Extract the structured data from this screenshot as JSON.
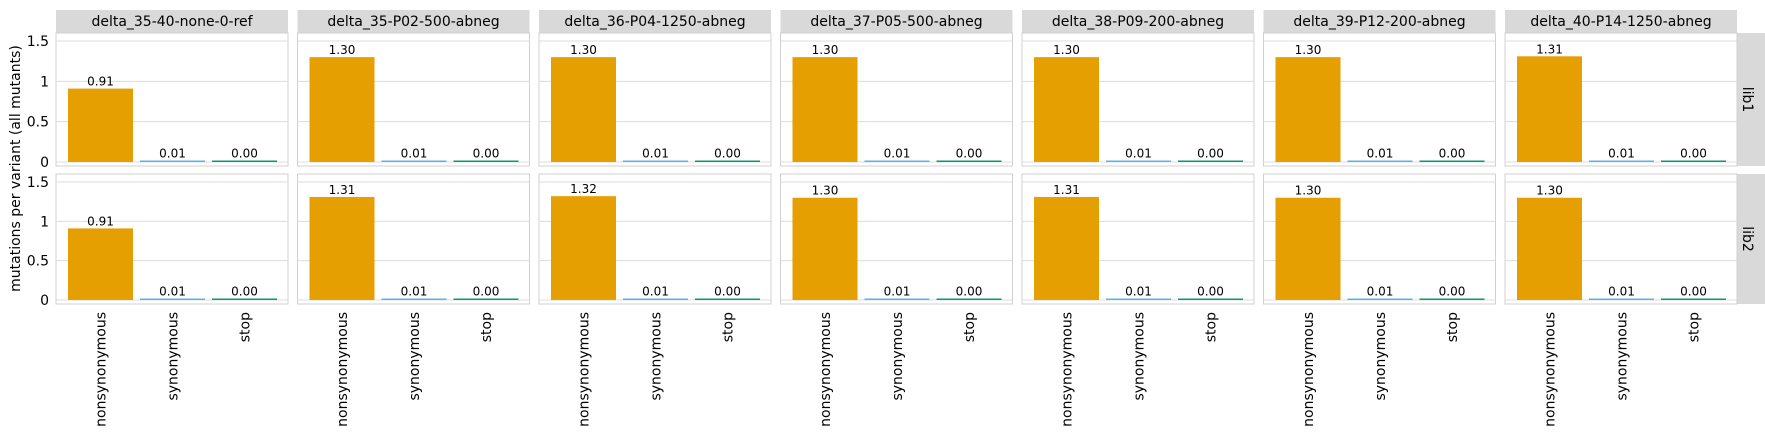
{
  "chart_data": {
    "type": "bar",
    "ylabel": "mutations per variant (all mutants)",
    "xlabel": "",
    "categories": [
      "nonsynonymous",
      "synonymous",
      "stop"
    ],
    "ylim": [
      0,
      1.5
    ],
    "yticks": [
      0,
      0.5,
      1,
      1.5
    ],
    "ytick_labels": [
      "0",
      "0.5",
      "1",
      "1.5"
    ],
    "grid": true,
    "legend": "none",
    "colors": {
      "nonsynonymous": "#E69F00",
      "synonymous": "#56B4E9",
      "stop": "#009E73",
      "strip_background": "#D9D9D9",
      "gridline": "#DCDCDC",
      "panel_border": "#D0D0D0"
    },
    "columns": [
      "delta_35-40-none-0-ref",
      "delta_35-P02-500-abneg",
      "delta_36-P04-1250-abneg",
      "delta_37-P05-500-abneg",
      "delta_38-P09-200-abneg",
      "delta_39-P12-200-abneg",
      "delta_40-P14-1250-abneg"
    ],
    "rows": [
      "lib1",
      "lib2"
    ],
    "values": {
      "lib1": [
        [
          0.91,
          0.01,
          0.0
        ],
        [
          1.3,
          0.01,
          0.0
        ],
        [
          1.3,
          0.01,
          0.0
        ],
        [
          1.3,
          0.01,
          0.0
        ],
        [
          1.3,
          0.01,
          0.0
        ],
        [
          1.3,
          0.01,
          0.0
        ],
        [
          1.31,
          0.01,
          0.0
        ]
      ],
      "lib2": [
        [
          0.91,
          0.01,
          0.0
        ],
        [
          1.31,
          0.01,
          0.0
        ],
        [
          1.32,
          0.01,
          0.0
        ],
        [
          1.3,
          0.01,
          0.0
        ],
        [
          1.31,
          0.01,
          0.0
        ],
        [
          1.3,
          0.01,
          0.0
        ],
        [
          1.3,
          0.01,
          0.0
        ]
      ]
    },
    "value_labels": {
      "lib1": [
        [
          "0.91",
          "0.01",
          "0.00"
        ],
        [
          "1.30",
          "0.01",
          "0.00"
        ],
        [
          "1.30",
          "0.01",
          "0.00"
        ],
        [
          "1.30",
          "0.01",
          "0.00"
        ],
        [
          "1.30",
          "0.01",
          "0.00"
        ],
        [
          "1.30",
          "0.01",
          "0.00"
        ],
        [
          "1.31",
          "0.01",
          "0.00"
        ]
      ],
      "lib2": [
        [
          "0.91",
          "0.01",
          "0.00"
        ],
        [
          "1.31",
          "0.01",
          "0.00"
        ],
        [
          "1.32",
          "0.01",
          "0.00"
        ],
        [
          "1.30",
          "0.01",
          "0.00"
        ],
        [
          "1.31",
          "0.01",
          "0.00"
        ],
        [
          "1.30",
          "0.01",
          "0.00"
        ],
        [
          "1.30",
          "0.01",
          "0.00"
        ]
      ]
    }
  }
}
